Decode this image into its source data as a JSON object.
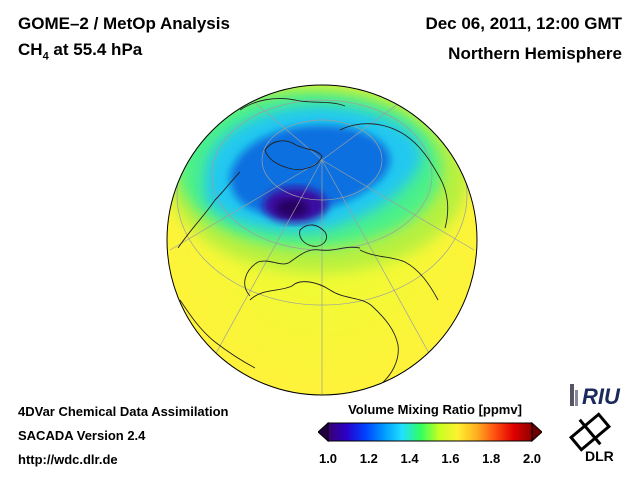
{
  "header": {
    "product": "GOME–2 / MetOp Analysis",
    "species": "CH",
    "species_sub": "4",
    "species_level": " at 55.4 hPa",
    "datetime": "Dec 06, 2011, 12:00 GMT",
    "region": "Northern Hemisphere"
  },
  "footer": {
    "line1": "4DVar Chemical Data Assimilation",
    "line2": "SACADA Version 2.4",
    "line3": "http://wdc.dlr.de"
  },
  "colorbar": {
    "title": "Volume Mixing Ratio [ppmv]",
    "ticks": [
      "1.0",
      "1.2",
      "1.4",
      "1.6",
      "1.8",
      "2.0"
    ],
    "min": 1.0,
    "max": 2.0,
    "colors": [
      "#3a0070",
      "#2a00c8",
      "#0040ff",
      "#0098ff",
      "#20e0ff",
      "#30ff60",
      "#c8ff20",
      "#fff030",
      "#ffb020",
      "#ff5010",
      "#e00000",
      "#900000"
    ]
  },
  "logos": {
    "riu": "RIU",
    "dlr": "DLR"
  },
  "map_field": {
    "background_value": 1.6,
    "regions": [
      {
        "name": "mid-latitude band",
        "value": 1.52
      },
      {
        "name": "subpolar ring",
        "value": 1.4
      },
      {
        "name": "polar vortex",
        "value": 1.22
      },
      {
        "name": "vortex core",
        "value": 1.05
      }
    ]
  }
}
